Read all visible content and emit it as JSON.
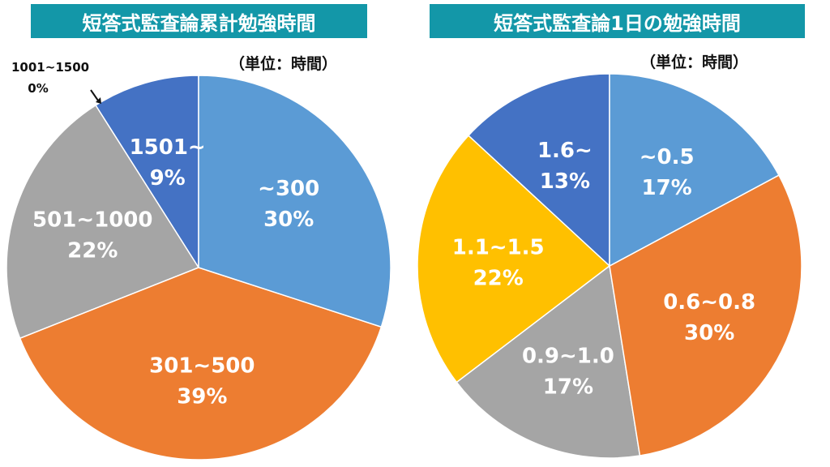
{
  "chart_data": [
    {
      "type": "pie",
      "title": "短答式監査論累計勉強時間",
      "unit_note": "（単位：時間）",
      "categories": [
        "~300",
        "301~500",
        "501~1000",
        "1001~1500",
        "1501~"
      ],
      "values": [
        30,
        39,
        22,
        0,
        9
      ],
      "colors": [
        "#5B9BD5",
        "#ED7D31",
        "#A5A5A5",
        "#A5A5A5",
        "#4472C4"
      ],
      "callout": {
        "label": "1001~1500",
        "value": "0%"
      }
    },
    {
      "type": "pie",
      "title": "短答式監査論1日の勉強時間",
      "unit_note": "（単位：時間）",
      "categories": [
        "~0.5",
        "0.6~0.8",
        "0.9~1.0",
        "1.1~1.5",
        "1.6~"
      ],
      "values": [
        17,
        30,
        17,
        22,
        13
      ],
      "colors": [
        "#5B9BD5",
        "#ED7D31",
        "#A5A5A5",
        "#FFC000",
        "#4472C4"
      ]
    }
  ]
}
